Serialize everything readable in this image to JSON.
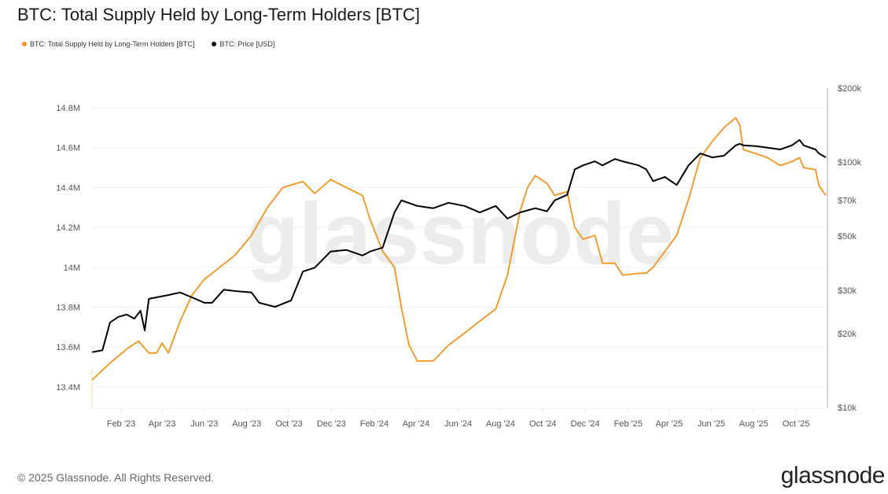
{
  "title": "BTC: Total Supply Held by Long-Term Holders [BTC]",
  "footer": {
    "copyright": "© 2025 Glassnode. All Rights Reserved.",
    "logo": "glassnode"
  },
  "watermark": "glassnode",
  "chart_data": {
    "type": "line",
    "title": "BTC: Total Supply Held by Long-Term Holders [BTC]",
    "legend_placement": "top-left",
    "grid": "horizontal",
    "x_ticks": [
      "Feb '23",
      "Apr '23",
      "Jun '23",
      "Aug '23",
      "Oct '23",
      "Dec '23",
      "Feb '24",
      "Apr '24",
      "Jun '24",
      "Aug '24",
      "Oct '24",
      "Dec '24",
      "Feb '25",
      "Apr '25",
      "Jun '25",
      "Aug '25",
      "Oct '25"
    ],
    "x_tick_dates": [
      "2023-02-01",
      "2023-04-01",
      "2023-06-01",
      "2023-08-01",
      "2023-10-01",
      "2023-12-01",
      "2024-02-01",
      "2024-04-01",
      "2024-06-01",
      "2024-08-01",
      "2024-10-01",
      "2024-12-01",
      "2025-02-01",
      "2025-04-01",
      "2025-06-01",
      "2025-08-01",
      "2025-10-01"
    ],
    "xlim": [
      "2022-12-21",
      "2025-11-13"
    ],
    "y_left": {
      "ticks": [
        13400000,
        13600000,
        13800000,
        14000000,
        14200000,
        14400000,
        14600000,
        14800000
      ],
      "tick_labels": [
        "13.4M",
        "13.6M",
        "13.8M",
        "14M",
        "14.2M",
        "14.4M",
        "14.6M",
        "14.8M"
      ],
      "ylim": [
        13350000,
        14950000
      ],
      "scale": "linear"
    },
    "y_right": {
      "ticks": [
        10000,
        20000,
        30000,
        50000,
        70000,
        100000,
        200000
      ],
      "tick_labels": [
        "$10k",
        "$20k",
        "$30k",
        "$50k",
        "$70k",
        "$100k",
        "$200k"
      ],
      "ylim": [
        10000,
        200000
      ],
      "scale": "log"
    },
    "series": [
      {
        "name": "BTC: Total Supply Held by Long-Term Holders [BTC]",
        "axis": "left",
        "color": "#f7931a",
        "points": [
          [
            "2022-12-21",
            13435000
          ],
          [
            "2023-01-16",
            13520000
          ],
          [
            "2023-02-09",
            13590000
          ],
          [
            "2023-02-26",
            13630000
          ],
          [
            "2023-03-13",
            13570000
          ],
          [
            "2023-03-24",
            13570000
          ],
          [
            "2023-04-01",
            13620000
          ],
          [
            "2023-04-10",
            13570000
          ],
          [
            "2023-04-27",
            13730000
          ],
          [
            "2023-05-14",
            13860000
          ],
          [
            "2023-06-01",
            13940000
          ],
          [
            "2023-06-23",
            14000000
          ],
          [
            "2023-07-15",
            14060000
          ],
          [
            "2023-08-08",
            14160000
          ],
          [
            "2023-08-31",
            14300000
          ],
          [
            "2023-09-22",
            14400000
          ],
          [
            "2023-10-21",
            14430000
          ],
          [
            "2023-11-07",
            14370000
          ],
          [
            "2023-11-30",
            14440000
          ],
          [
            "2023-12-23",
            14400000
          ],
          [
            "2024-01-15",
            14360000
          ],
          [
            "2024-01-26",
            14240000
          ],
          [
            "2024-02-13",
            14080000
          ],
          [
            "2024-03-01",
            14000000
          ],
          [
            "2024-03-11",
            13800000
          ],
          [
            "2024-03-22",
            13610000
          ],
          [
            "2024-04-03",
            13530000
          ],
          [
            "2024-04-26",
            13530000
          ],
          [
            "2024-05-18",
            13610000
          ],
          [
            "2024-06-10",
            13670000
          ],
          [
            "2024-07-02",
            13730000
          ],
          [
            "2024-07-25",
            13790000
          ],
          [
            "2024-08-11",
            13960000
          ],
          [
            "2024-08-29",
            14280000
          ],
          [
            "2024-09-09",
            14400000
          ],
          [
            "2024-09-20",
            14460000
          ],
          [
            "2024-10-07",
            14420000
          ],
          [
            "2024-10-18",
            14360000
          ],
          [
            "2024-11-05",
            14380000
          ],
          [
            "2024-11-16",
            14200000
          ],
          [
            "2024-11-28",
            14140000
          ],
          [
            "2024-12-15",
            14160000
          ],
          [
            "2024-12-26",
            14020000
          ],
          [
            "2025-01-13",
            14020000
          ],
          [
            "2025-01-24",
            13960000
          ],
          [
            "2025-02-16",
            13970000
          ],
          [
            "2025-02-27",
            13970000
          ],
          [
            "2025-03-09",
            14000000
          ],
          [
            "2025-03-26",
            14080000
          ],
          [
            "2025-04-12",
            14160000
          ],
          [
            "2025-04-29",
            14340000
          ],
          [
            "2025-05-16",
            14550000
          ],
          [
            "2025-06-02",
            14630000
          ],
          [
            "2025-06-19",
            14700000
          ],
          [
            "2025-07-06",
            14750000
          ],
          [
            "2025-07-12",
            14710000
          ],
          [
            "2025-07-17",
            14590000
          ],
          [
            "2025-08-04",
            14570000
          ],
          [
            "2025-08-21",
            14550000
          ],
          [
            "2025-09-08",
            14510000
          ],
          [
            "2025-09-25",
            14530000
          ],
          [
            "2025-10-06",
            14550000
          ],
          [
            "2025-10-12",
            14500000
          ],
          [
            "2025-10-29",
            14490000
          ],
          [
            "2025-11-03",
            14410000
          ],
          [
            "2025-11-13",
            14360000
          ]
        ]
      },
      {
        "name": "BTC: Price [USD]",
        "axis": "right",
        "color": "#000000",
        "points": [
          [
            "2022-12-21",
            16800
          ],
          [
            "2023-01-05",
            17100
          ],
          [
            "2023-01-16",
            22200
          ],
          [
            "2023-01-28",
            23400
          ],
          [
            "2023-02-09",
            23900
          ],
          [
            "2023-02-20",
            23000
          ],
          [
            "2023-03-01",
            24800
          ],
          [
            "2023-03-07",
            20600
          ],
          [
            "2023-03-13",
            27700
          ],
          [
            "2023-03-24",
            28100
          ],
          [
            "2023-04-10",
            28700
          ],
          [
            "2023-04-27",
            29400
          ],
          [
            "2023-05-14",
            28100
          ],
          [
            "2023-06-01",
            26700
          ],
          [
            "2023-06-12",
            26700
          ],
          [
            "2023-06-29",
            30200
          ],
          [
            "2023-07-15",
            29800
          ],
          [
            "2023-08-08",
            29400
          ],
          [
            "2023-08-19",
            26700
          ],
          [
            "2023-09-11",
            25700
          ],
          [
            "2023-10-04",
            27300
          ],
          [
            "2023-10-21",
            35800
          ],
          [
            "2023-11-07",
            37100
          ],
          [
            "2023-11-30",
            43200
          ],
          [
            "2023-12-23",
            43800
          ],
          [
            "2024-01-15",
            41600
          ],
          [
            "2024-01-26",
            43200
          ],
          [
            "2024-02-13",
            44800
          ],
          [
            "2024-03-01",
            62300
          ],
          [
            "2024-03-11",
            69800
          ],
          [
            "2024-04-03",
            66200
          ],
          [
            "2024-04-26",
            64800
          ],
          [
            "2024-05-18",
            68200
          ],
          [
            "2024-06-10",
            66200
          ],
          [
            "2024-07-02",
            62300
          ],
          [
            "2024-07-25",
            66200
          ],
          [
            "2024-08-11",
            58800
          ],
          [
            "2024-08-29",
            62300
          ],
          [
            "2024-09-20",
            64800
          ],
          [
            "2024-10-07",
            63000
          ],
          [
            "2024-10-18",
            69800
          ],
          [
            "2024-11-05",
            73500
          ],
          [
            "2024-11-16",
            93300
          ],
          [
            "2024-11-28",
            96900
          ],
          [
            "2024-12-15",
            100600
          ],
          [
            "2024-12-26",
            96900
          ],
          [
            "2025-01-13",
            102900
          ],
          [
            "2025-01-24",
            100600
          ],
          [
            "2025-02-16",
            96900
          ],
          [
            "2025-02-27",
            93300
          ],
          [
            "2025-03-09",
            83600
          ],
          [
            "2025-03-26",
            86900
          ],
          [
            "2025-04-12",
            80600
          ],
          [
            "2025-04-29",
            96900
          ],
          [
            "2025-05-16",
            108300
          ],
          [
            "2025-06-02",
            104400
          ],
          [
            "2025-06-19",
            106000
          ],
          [
            "2025-07-06",
            116900
          ],
          [
            "2025-07-12",
            118600
          ],
          [
            "2025-07-17",
            116900
          ],
          [
            "2025-08-04",
            116000
          ],
          [
            "2025-08-21",
            114300
          ],
          [
            "2025-09-08",
            112500
          ],
          [
            "2025-09-25",
            116900
          ],
          [
            "2025-10-06",
            123000
          ],
          [
            "2025-10-12",
            116900
          ],
          [
            "2025-10-29",
            112500
          ],
          [
            "2025-11-03",
            108300
          ],
          [
            "2025-11-13",
            104400
          ]
        ]
      }
    ]
  }
}
